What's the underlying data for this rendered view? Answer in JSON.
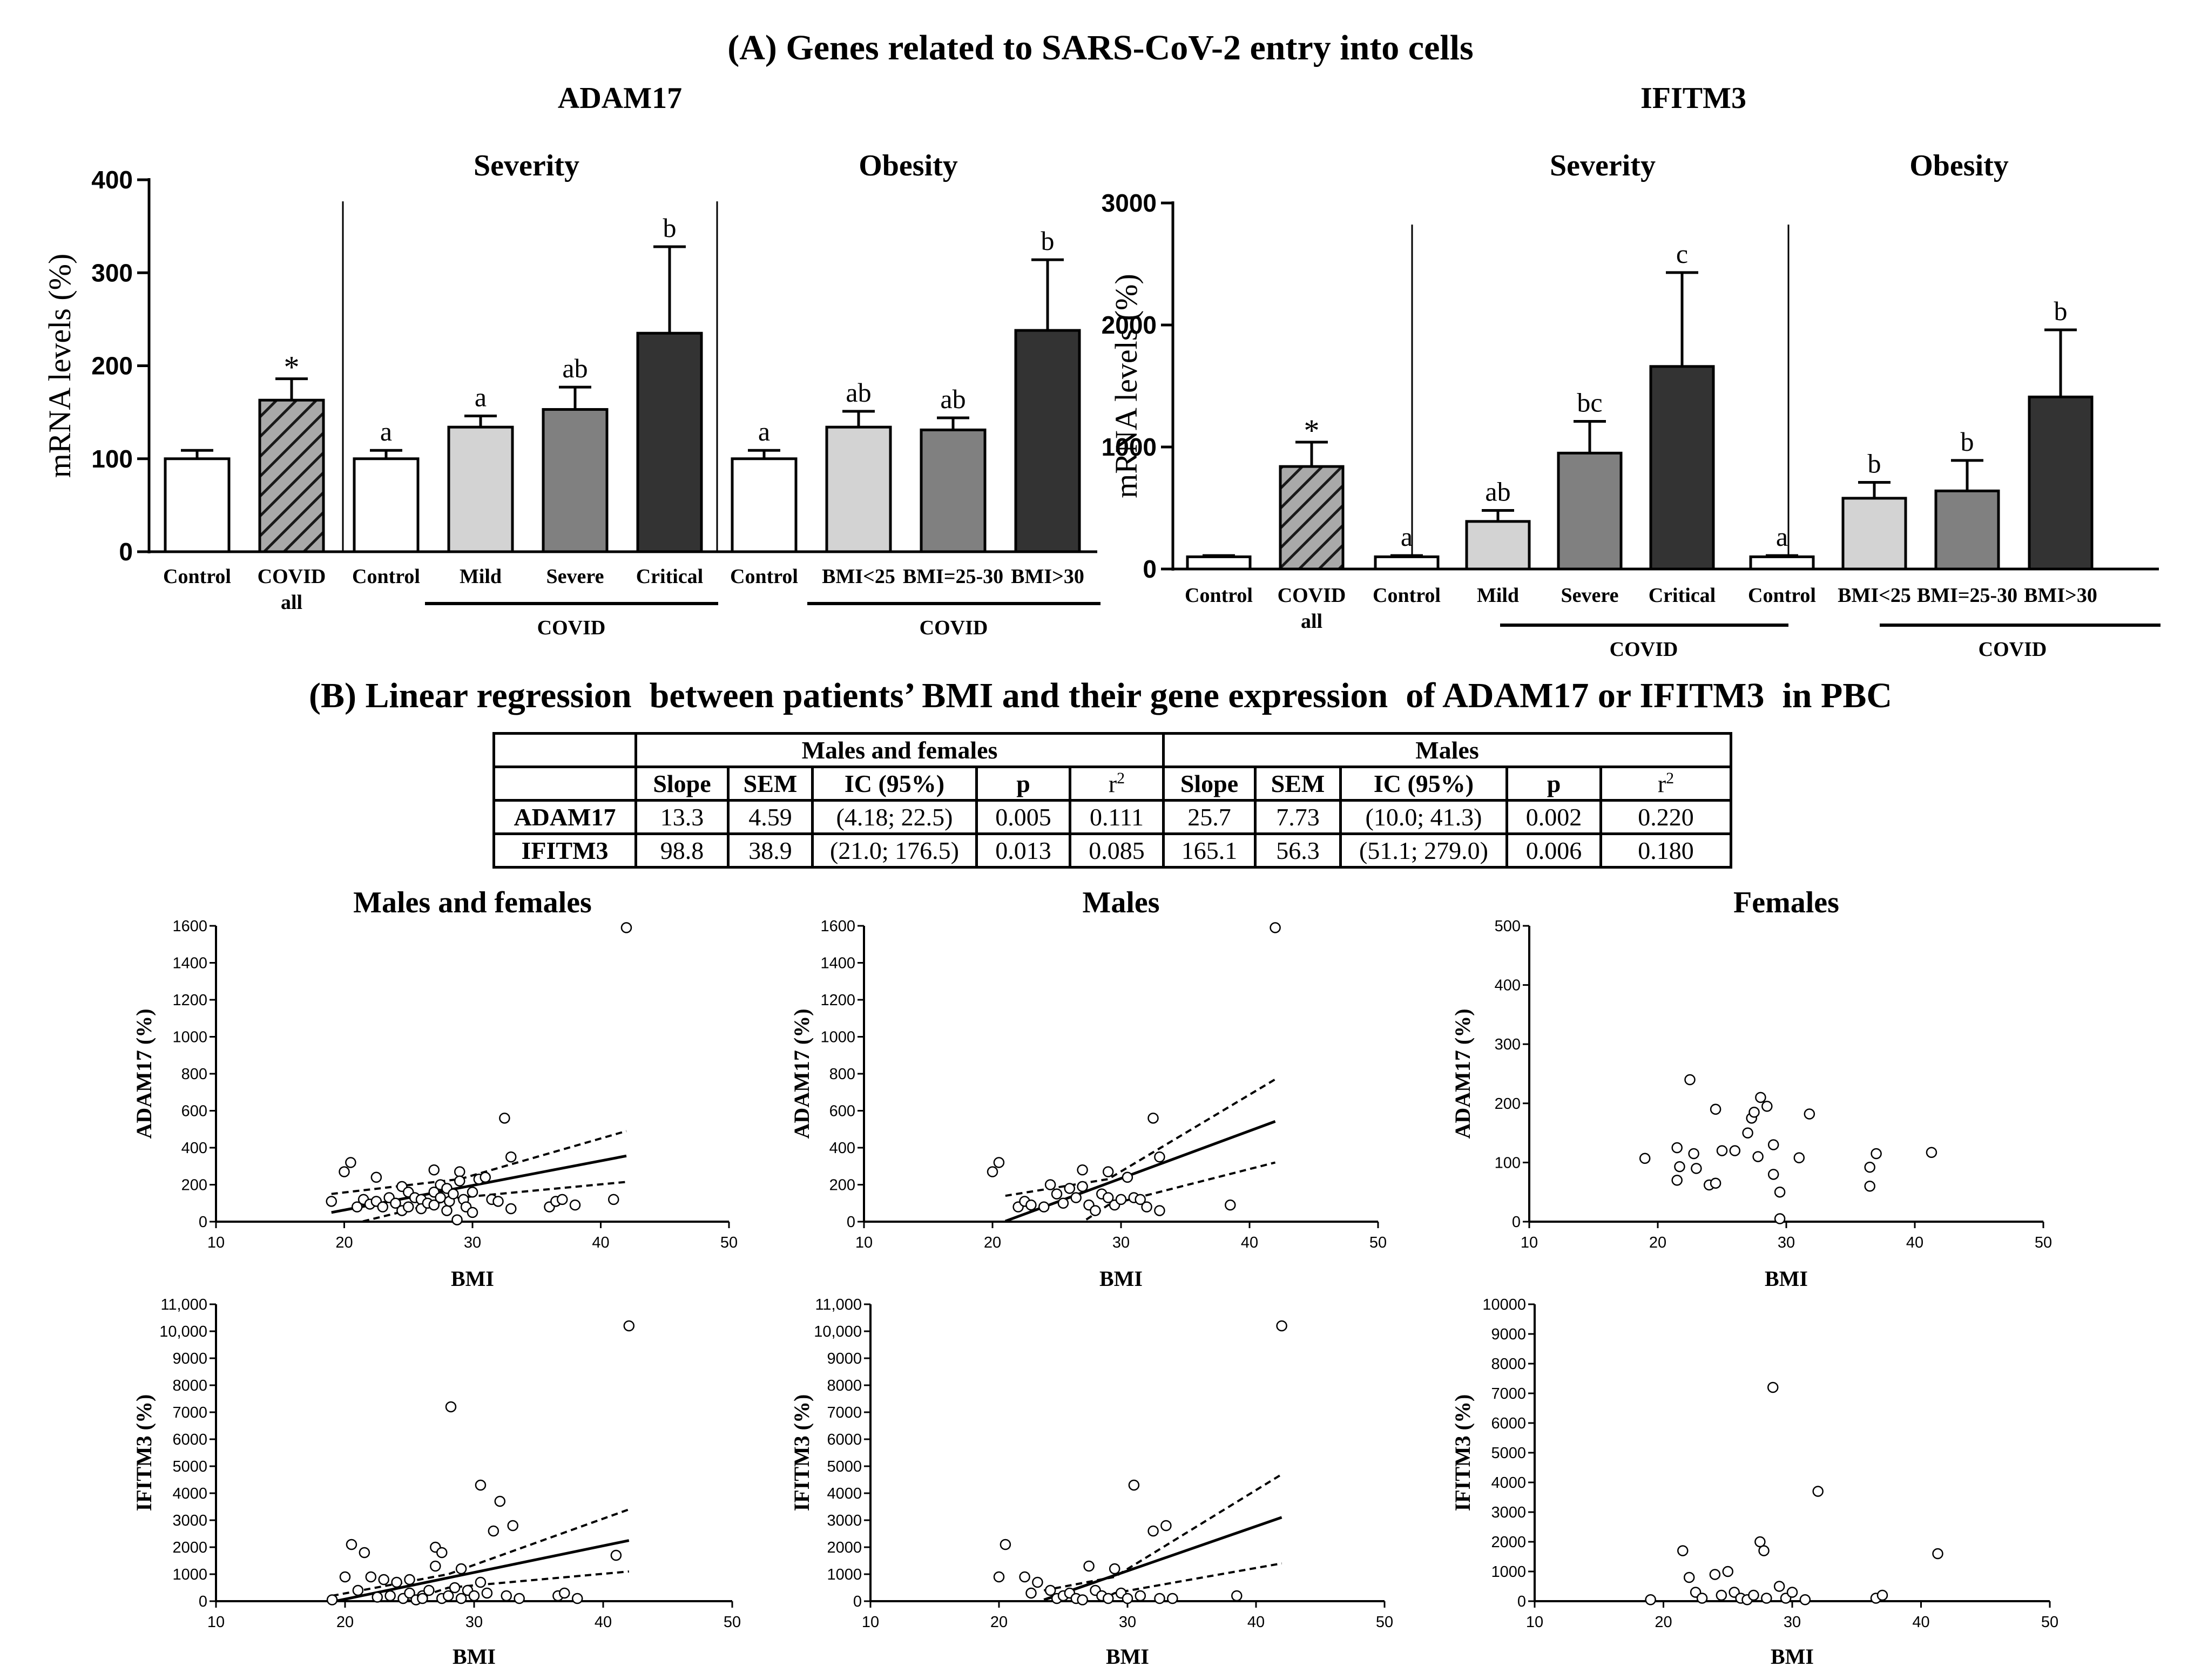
{
  "title_a": "(A) Genes related to SARS-CoV-2 entry into cells",
  "title_b": "(B) Linear regression  between patients’ BMI and their gene expression  of ADAM17 or IFITM3  in PBC",
  "colors": {
    "white": "#ffffff",
    "hatched": "#a9a9a9",
    "light": "#d3d3d3",
    "medium": "#808080",
    "dark": "#333333"
  },
  "chart_data": [
    {
      "type": "bar",
      "title": "ADAM17",
      "ylabel": "mRNA levels  (%)",
      "ylim": [
        0,
        400
      ],
      "yticks": [
        0,
        100,
        200,
        300,
        400
      ],
      "section_titles": [
        "Severity",
        "Obesity"
      ],
      "covid_label": "COVID",
      "categories": [
        "Control",
        "COVID all",
        "Control",
        "Mild",
        "Severe",
        "Critical",
        "Control",
        "BMI<25",
        "BMI=25-30",
        "BMI>30"
      ],
      "values": [
        100,
        163,
        100,
        134,
        153,
        235,
        100,
        134,
        131,
        238
      ],
      "errors": [
        9,
        23,
        9,
        12,
        24,
        93,
        9,
        17,
        13,
        76
      ],
      "annotations": [
        "",
        "*",
        "a",
        "a",
        "ab",
        "b",
        "a",
        "ab",
        "ab",
        "b"
      ],
      "fills": [
        "white",
        "hatched",
        "white",
        "light",
        "medium",
        "dark",
        "white",
        "light",
        "medium",
        "dark"
      ]
    },
    {
      "type": "bar",
      "title": "IFITM3",
      "ylabel": "mRNA levels  (%)",
      "ylim": [
        0,
        3000
      ],
      "yticks": [
        0,
        1000,
        2000,
        3000
      ],
      "section_titles": [
        "Severity",
        "Obesity"
      ],
      "covid_label": "COVID",
      "categories": [
        "Control",
        "COVID all",
        "Control",
        "Mild",
        "Severe",
        "Critical",
        "Control",
        "BMI<25",
        "BMI=25-30",
        "BMI>30"
      ],
      "values": [
        100,
        840,
        100,
        390,
        950,
        1660,
        100,
        580,
        640,
        1410
      ],
      "errors": [
        10,
        200,
        10,
        90,
        260,
        770,
        10,
        130,
        250,
        550
      ],
      "annotations": [
        "",
        "*",
        "a",
        "ab",
        "bc",
        "c",
        "a",
        "b",
        "b",
        "b"
      ],
      "fills": [
        "white",
        "hatched",
        "white",
        "light",
        "medium",
        "dark",
        "white",
        "light",
        "medium",
        "dark"
      ]
    },
    {
      "type": "scatter",
      "title": "Males and females",
      "ylabel": "ADAM17 (%)",
      "xlabel": "BMI",
      "xlim": [
        10,
        50
      ],
      "xticks": [
        10,
        20,
        30,
        40,
        50
      ],
      "ylim": [
        0,
        1600
      ],
      "yticks": [
        0,
        200,
        400,
        600,
        800,
        1000,
        1200,
        1400,
        1600
      ],
      "fit": {
        "slope": 13.3,
        "intercept": -203,
        "x_range": [
          19,
          42
        ]
      },
      "ci": {
        "lower": [
          [
            19,
            -40
          ],
          [
            29,
            130
          ],
          [
            42,
            215
          ]
        ],
        "upper": [
          [
            19,
            150
          ],
          [
            29,
            230
          ],
          [
            42,
            490
          ]
        ]
      },
      "points": [
        [
          19,
          110
        ],
        [
          20,
          270
        ],
        [
          20.5,
          320
        ],
        [
          21,
          80
        ],
        [
          21.5,
          120
        ],
        [
          22,
          95
        ],
        [
          22.5,
          110
        ],
        [
          22.5,
          240
        ],
        [
          23,
          80
        ],
        [
          23.5,
          130
        ],
        [
          24,
          100
        ],
        [
          24.5,
          190
        ],
        [
          24.5,
          60
        ],
        [
          25,
          160
        ],
        [
          25,
          80
        ],
        [
          25.5,
          130
        ],
        [
          26,
          120
        ],
        [
          26,
          70
        ],
        [
          26.5,
          100
        ],
        [
          27,
          280
        ],
        [
          27,
          160
        ],
        [
          27,
          90
        ],
        [
          27.5,
          130
        ],
        [
          27.5,
          200
        ],
        [
          28,
          180
        ],
        [
          28,
          60
        ],
        [
          28.2,
          110
        ],
        [
          28.5,
          150
        ],
        [
          28.8,
          10
        ],
        [
          29,
          270
        ],
        [
          29,
          220
        ],
        [
          29.3,
          120
        ],
        [
          29.5,
          80
        ],
        [
          30,
          160
        ],
        [
          30,
          50
        ],
        [
          30.5,
          230
        ],
        [
          31,
          240
        ],
        [
          31.5,
          120
        ],
        [
          32,
          110
        ],
        [
          32.5,
          560
        ],
        [
          33,
          70
        ],
        [
          33,
          350
        ],
        [
          36,
          80
        ],
        [
          36.5,
          110
        ],
        [
          37,
          120
        ],
        [
          38,
          90
        ],
        [
          41,
          120
        ],
        [
          42,
          1590
        ]
      ]
    },
    {
      "type": "scatter",
      "title": "Males",
      "ylabel": "ADAM17 (%)",
      "xlabel": "BMI",
      "xlim": [
        10,
        50
      ],
      "xticks": [
        10,
        20,
        30,
        40,
        50
      ],
      "ylim": [
        0,
        1600
      ],
      "yticks": [
        0,
        200,
        400,
        600,
        800,
        1000,
        1200,
        1400,
        1600
      ],
      "fit": {
        "slope": 25.7,
        "intercept": -537,
        "x_range": [
          21,
          42
        ]
      },
      "ci": {
        "lower": [
          [
            21,
            -280
          ],
          [
            29,
            90
          ],
          [
            42,
            320
          ]
        ],
        "upper": [
          [
            21,
            140
          ],
          [
            29,
            230
          ],
          [
            42,
            770
          ]
        ]
      },
      "points": [
        [
          20,
          270
        ],
        [
          20.5,
          320
        ],
        [
          22,
          80
        ],
        [
          22.5,
          110
        ],
        [
          23,
          90
        ],
        [
          24,
          80
        ],
        [
          24.5,
          200
        ],
        [
          25,
          150
        ],
        [
          25.5,
          100
        ],
        [
          26,
          180
        ],
        [
          26.5,
          130
        ],
        [
          27,
          280
        ],
        [
          27,
          190
        ],
        [
          27.5,
          90
        ],
        [
          28,
          60
        ],
        [
          28.5,
          150
        ],
        [
          29,
          270
        ],
        [
          29,
          130
        ],
        [
          29.5,
          90
        ],
        [
          30,
          120
        ],
        [
          30.5,
          240
        ],
        [
          31,
          130
        ],
        [
          31.5,
          120
        ],
        [
          32,
          80
        ],
        [
          32.5,
          560
        ],
        [
          33,
          350
        ],
        [
          33,
          60
        ],
        [
          38.5,
          90
        ],
        [
          42,
          1590
        ]
      ]
    },
    {
      "type": "scatter",
      "title": "Females",
      "ylabel": "ADAM17 (%)",
      "xlabel": "BMI",
      "xlim": [
        10,
        50
      ],
      "xticks": [
        10,
        20,
        30,
        40,
        50
      ],
      "ylim": [
        0,
        500
      ],
      "yticks": [
        0,
        100,
        200,
        300,
        400,
        500
      ],
      "fit": null,
      "ci": null,
      "points": [
        [
          19,
          107
        ],
        [
          21.5,
          125
        ],
        [
          21.5,
          70
        ],
        [
          21.7,
          93
        ],
        [
          22.5,
          240
        ],
        [
          22.8,
          115
        ],
        [
          23,
          90
        ],
        [
          24,
          62
        ],
        [
          24.5,
          190
        ],
        [
          24.5,
          65
        ],
        [
          25,
          120
        ],
        [
          26,
          120
        ],
        [
          27,
          150
        ],
        [
          27.3,
          175
        ],
        [
          27.5,
          185
        ],
        [
          27.8,
          110
        ],
        [
          28,
          210
        ],
        [
          28.5,
          195
        ],
        [
          29,
          130
        ],
        [
          29,
          80
        ],
        [
          29.5,
          50
        ],
        [
          29.5,
          5
        ],
        [
          31,
          108
        ],
        [
          31.8,
          182
        ],
        [
          36.5,
          92
        ],
        [
          36.5,
          60
        ],
        [
          37,
          115
        ],
        [
          41.3,
          117
        ]
      ]
    },
    {
      "type": "scatter",
      "title": "",
      "ylabel": "IFITM3 (%)",
      "xlabel": "BMI",
      "xlim": [
        10,
        50
      ],
      "xticks": [
        10,
        20,
        30,
        40,
        50
      ],
      "ylim": [
        0,
        11000
      ],
      "yticks": [
        0,
        1000,
        2000,
        3000,
        4000,
        5000,
        6000,
        7000,
        8000,
        9000,
        10000,
        11000
      ],
      "ytick_labels": [
        "0",
        "1000",
        "2000",
        "3000",
        "4000",
        "5000",
        "6000",
        "7000",
        "8000",
        "9000",
        "10,000",
        "11,000"
      ],
      "fit": {
        "slope": 98.8,
        "intercept": -1900,
        "x_range": [
          19,
          42
        ]
      },
      "ci": {
        "lower": [
          [
            19,
            -900
          ],
          [
            28,
            500
          ],
          [
            42,
            1100
          ]
        ],
        "upper": [
          [
            19,
            200
          ],
          [
            28,
            1000
          ],
          [
            42,
            3400
          ]
        ]
      },
      "points": [
        [
          19,
          50
        ],
        [
          20,
          900
        ],
        [
          20.5,
          2100
        ],
        [
          21,
          400
        ],
        [
          21.5,
          1800
        ],
        [
          22,
          900
        ],
        [
          22.5,
          150
        ],
        [
          23,
          800
        ],
        [
          23.5,
          200
        ],
        [
          24,
          700
        ],
        [
          24.5,
          100
        ],
        [
          25,
          300
        ],
        [
          25,
          800
        ],
        [
          25.5,
          50
        ],
        [
          26,
          200
        ],
        [
          26,
          100
        ],
        [
          26.5,
          400
        ],
        [
          27,
          1300
        ],
        [
          27,
          2000
        ],
        [
          27.5,
          100
        ],
        [
          27.5,
          1800
        ],
        [
          28,
          200
        ],
        [
          28.2,
          7200
        ],
        [
          28.5,
          500
        ],
        [
          29,
          1200
        ],
        [
          29,
          100
        ],
        [
          29.5,
          400
        ],
        [
          30,
          200
        ],
        [
          30.5,
          4300
        ],
        [
          30.5,
          700
        ],
        [
          31,
          300
        ],
        [
          31.5,
          2600
        ],
        [
          32,
          3700
        ],
        [
          32.5,
          200
        ],
        [
          33,
          2800
        ],
        [
          33.5,
          100
        ],
        [
          36.5,
          200
        ],
        [
          37,
          300
        ],
        [
          38,
          100
        ],
        [
          41,
          1700
        ],
        [
          42,
          10200
        ]
      ]
    },
    {
      "type": "scatter",
      "title": "",
      "ylabel": "IFITM3 (%)",
      "xlabel": "BMI",
      "xlim": [
        10,
        50
      ],
      "xticks": [
        10,
        20,
        30,
        40,
        50
      ],
      "ylim": [
        0,
        11000
      ],
      "yticks": [
        0,
        1000,
        2000,
        3000,
        4000,
        5000,
        6000,
        7000,
        8000,
        9000,
        10000,
        11000
      ],
      "ytick_labels": [
        "0",
        "1000",
        "2000",
        "3000",
        "4000",
        "5000",
        "6000",
        "7000",
        "8000",
        "9000",
        "10,000",
        "11,000"
      ],
      "fit": {
        "slope": 165.1,
        "intercept": -3830,
        "x_range": [
          23.5,
          42
        ]
      },
      "ci": {
        "lower": [
          [
            23.5,
            -1000
          ],
          [
            29,
            300
          ],
          [
            42,
            1400
          ]
        ],
        "upper": [
          [
            23.5,
            400
          ],
          [
            29,
            900
          ],
          [
            42,
            4700
          ]
        ]
      },
      "points": [
        [
          20,
          900
        ],
        [
          20.5,
          2100
        ],
        [
          22,
          900
        ],
        [
          22.5,
          300
        ],
        [
          23,
          700
        ],
        [
          24,
          400
        ],
        [
          24.5,
          100
        ],
        [
          25,
          200
        ],
        [
          25.5,
          300
        ],
        [
          26,
          100
        ],
        [
          26.5,
          50
        ],
        [
          27,
          1300
        ],
        [
          27.5,
          400
        ],
        [
          28,
          200
        ],
        [
          28.5,
          100
        ],
        [
          29,
          1200
        ],
        [
          29.5,
          300
        ],
        [
          30,
          100
        ],
        [
          30.5,
          4300
        ],
        [
          31,
          200
        ],
        [
          32,
          2600
        ],
        [
          32.5,
          100
        ],
        [
          33,
          2800
        ],
        [
          33.5,
          100
        ],
        [
          38.5,
          200
        ],
        [
          42,
          10200
        ]
      ]
    },
    {
      "type": "scatter",
      "title": "",
      "ylabel": "IFITM3 (%)",
      "xlabel": "BMI",
      "xlim": [
        10,
        50
      ],
      "xticks": [
        10,
        20,
        30,
        40,
        50
      ],
      "ylim": [
        0,
        10000
      ],
      "yticks": [
        0,
        1000,
        2000,
        3000,
        4000,
        5000,
        6000,
        7000,
        8000,
        9000,
        10000
      ],
      "ytick_labels": [
        "0",
        "1000",
        "2000",
        "3000",
        "4000",
        "5000",
        "6000",
        "7000",
        "8000",
        "9000",
        "10000"
      ],
      "fit": null,
      "ci": null,
      "points": [
        [
          19,
          50
        ],
        [
          21.5,
          1700
        ],
        [
          22,
          800
        ],
        [
          22.5,
          300
        ],
        [
          23,
          100
        ],
        [
          24,
          900
        ],
        [
          24.5,
          200
        ],
        [
          25,
          1000
        ],
        [
          25.5,
          300
        ],
        [
          26,
          100
        ],
        [
          26.5,
          50
        ],
        [
          27,
          200
        ],
        [
          27.5,
          2000
        ],
        [
          27.8,
          1700
        ],
        [
          28,
          100
        ],
        [
          28.5,
          7200
        ],
        [
          29,
          500
        ],
        [
          29.5,
          100
        ],
        [
          30,
          300
        ],
        [
          31,
          50
        ],
        [
          32,
          3700
        ],
        [
          36.5,
          100
        ],
        [
          37,
          200
        ],
        [
          41.3,
          1600
        ]
      ]
    }
  ],
  "table": {
    "group_headers": [
      "Males and females",
      "Males"
    ],
    "columns": [
      "Slope",
      "SEM",
      "IC (95%)",
      "p",
      "r",
      "Slope",
      "SEM",
      "IC (95%)",
      "p",
      "r"
    ],
    "r_superscript": "2",
    "rows": [
      {
        "gene": "ADAM17",
        "cells": [
          "13.3",
          "4.59",
          "(4.18; 22.5)",
          "0.005",
          "0.111",
          "25.7",
          "7.73",
          "(10.0; 41.3)",
          "0.002",
          "0.220"
        ]
      },
      {
        "gene": "IFITM3",
        "cells": [
          "98.8",
          "38.9",
          "(21.0; 176.5)",
          "0.013",
          "0.085",
          "165.1",
          "56.3",
          "(51.1; 279.0)",
          "0.006",
          "0.180"
        ]
      }
    ]
  }
}
